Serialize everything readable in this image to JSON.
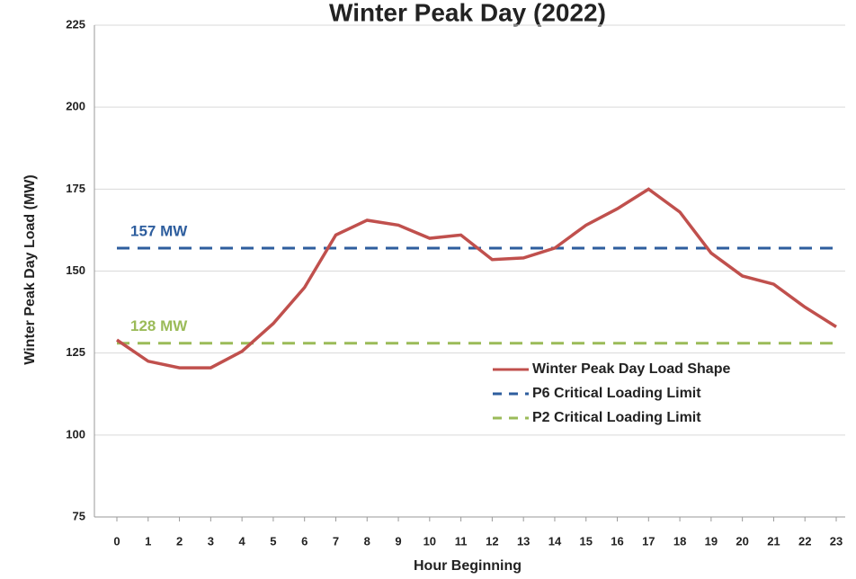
{
  "chart_data": {
    "type": "line",
    "title": "Winter Peak Day (2022)",
    "x_label": "Hour Beginning",
    "y_label": "Winter Peak Day Load (MW)",
    "categories": [
      "0",
      "1",
      "2",
      "3",
      "4",
      "5",
      "6",
      "7",
      "8",
      "9",
      "10",
      "11",
      "12",
      "13",
      "14",
      "15",
      "16",
      "17",
      "18",
      "19",
      "20",
      "21",
      "22",
      "23"
    ],
    "series": [
      {
        "name": "Winter Peak Day Load Shape",
        "color": "#c0504d",
        "style": "solid",
        "values": [
          129,
          122.5,
          120.5,
          120.5,
          125.5,
          134,
          145,
          161,
          165.5,
          164,
          160,
          161,
          153.5,
          154,
          157,
          164,
          169,
          175,
          168,
          155.5,
          148.5,
          146,
          139,
          133
        ]
      },
      {
        "name": "P6 Critical Loading Limit",
        "color": "#2e5e9e",
        "style": "dashed",
        "values": [
          157,
          157,
          157,
          157,
          157,
          157,
          157,
          157,
          157,
          157,
          157,
          157,
          157,
          157,
          157,
          157,
          157,
          157,
          157,
          157,
          157,
          157,
          157,
          157
        ]
      },
      {
        "name": "P2 Critical Loading Limit",
        "color": "#9bbb59",
        "style": "dashed",
        "values": [
          128,
          128,
          128,
          128,
          128,
          128,
          128,
          128,
          128,
          128,
          128,
          128,
          128,
          128,
          128,
          128,
          128,
          128,
          128,
          128,
          128,
          128,
          128,
          128
        ]
      }
    ],
    "annotations": [
      "157 MW",
      "128 MW"
    ],
    "ylim": [
      75,
      225
    ],
    "yticks": [
      75,
      100,
      125,
      150,
      175,
      200,
      225
    ],
    "grid": true,
    "legend": "right"
  }
}
